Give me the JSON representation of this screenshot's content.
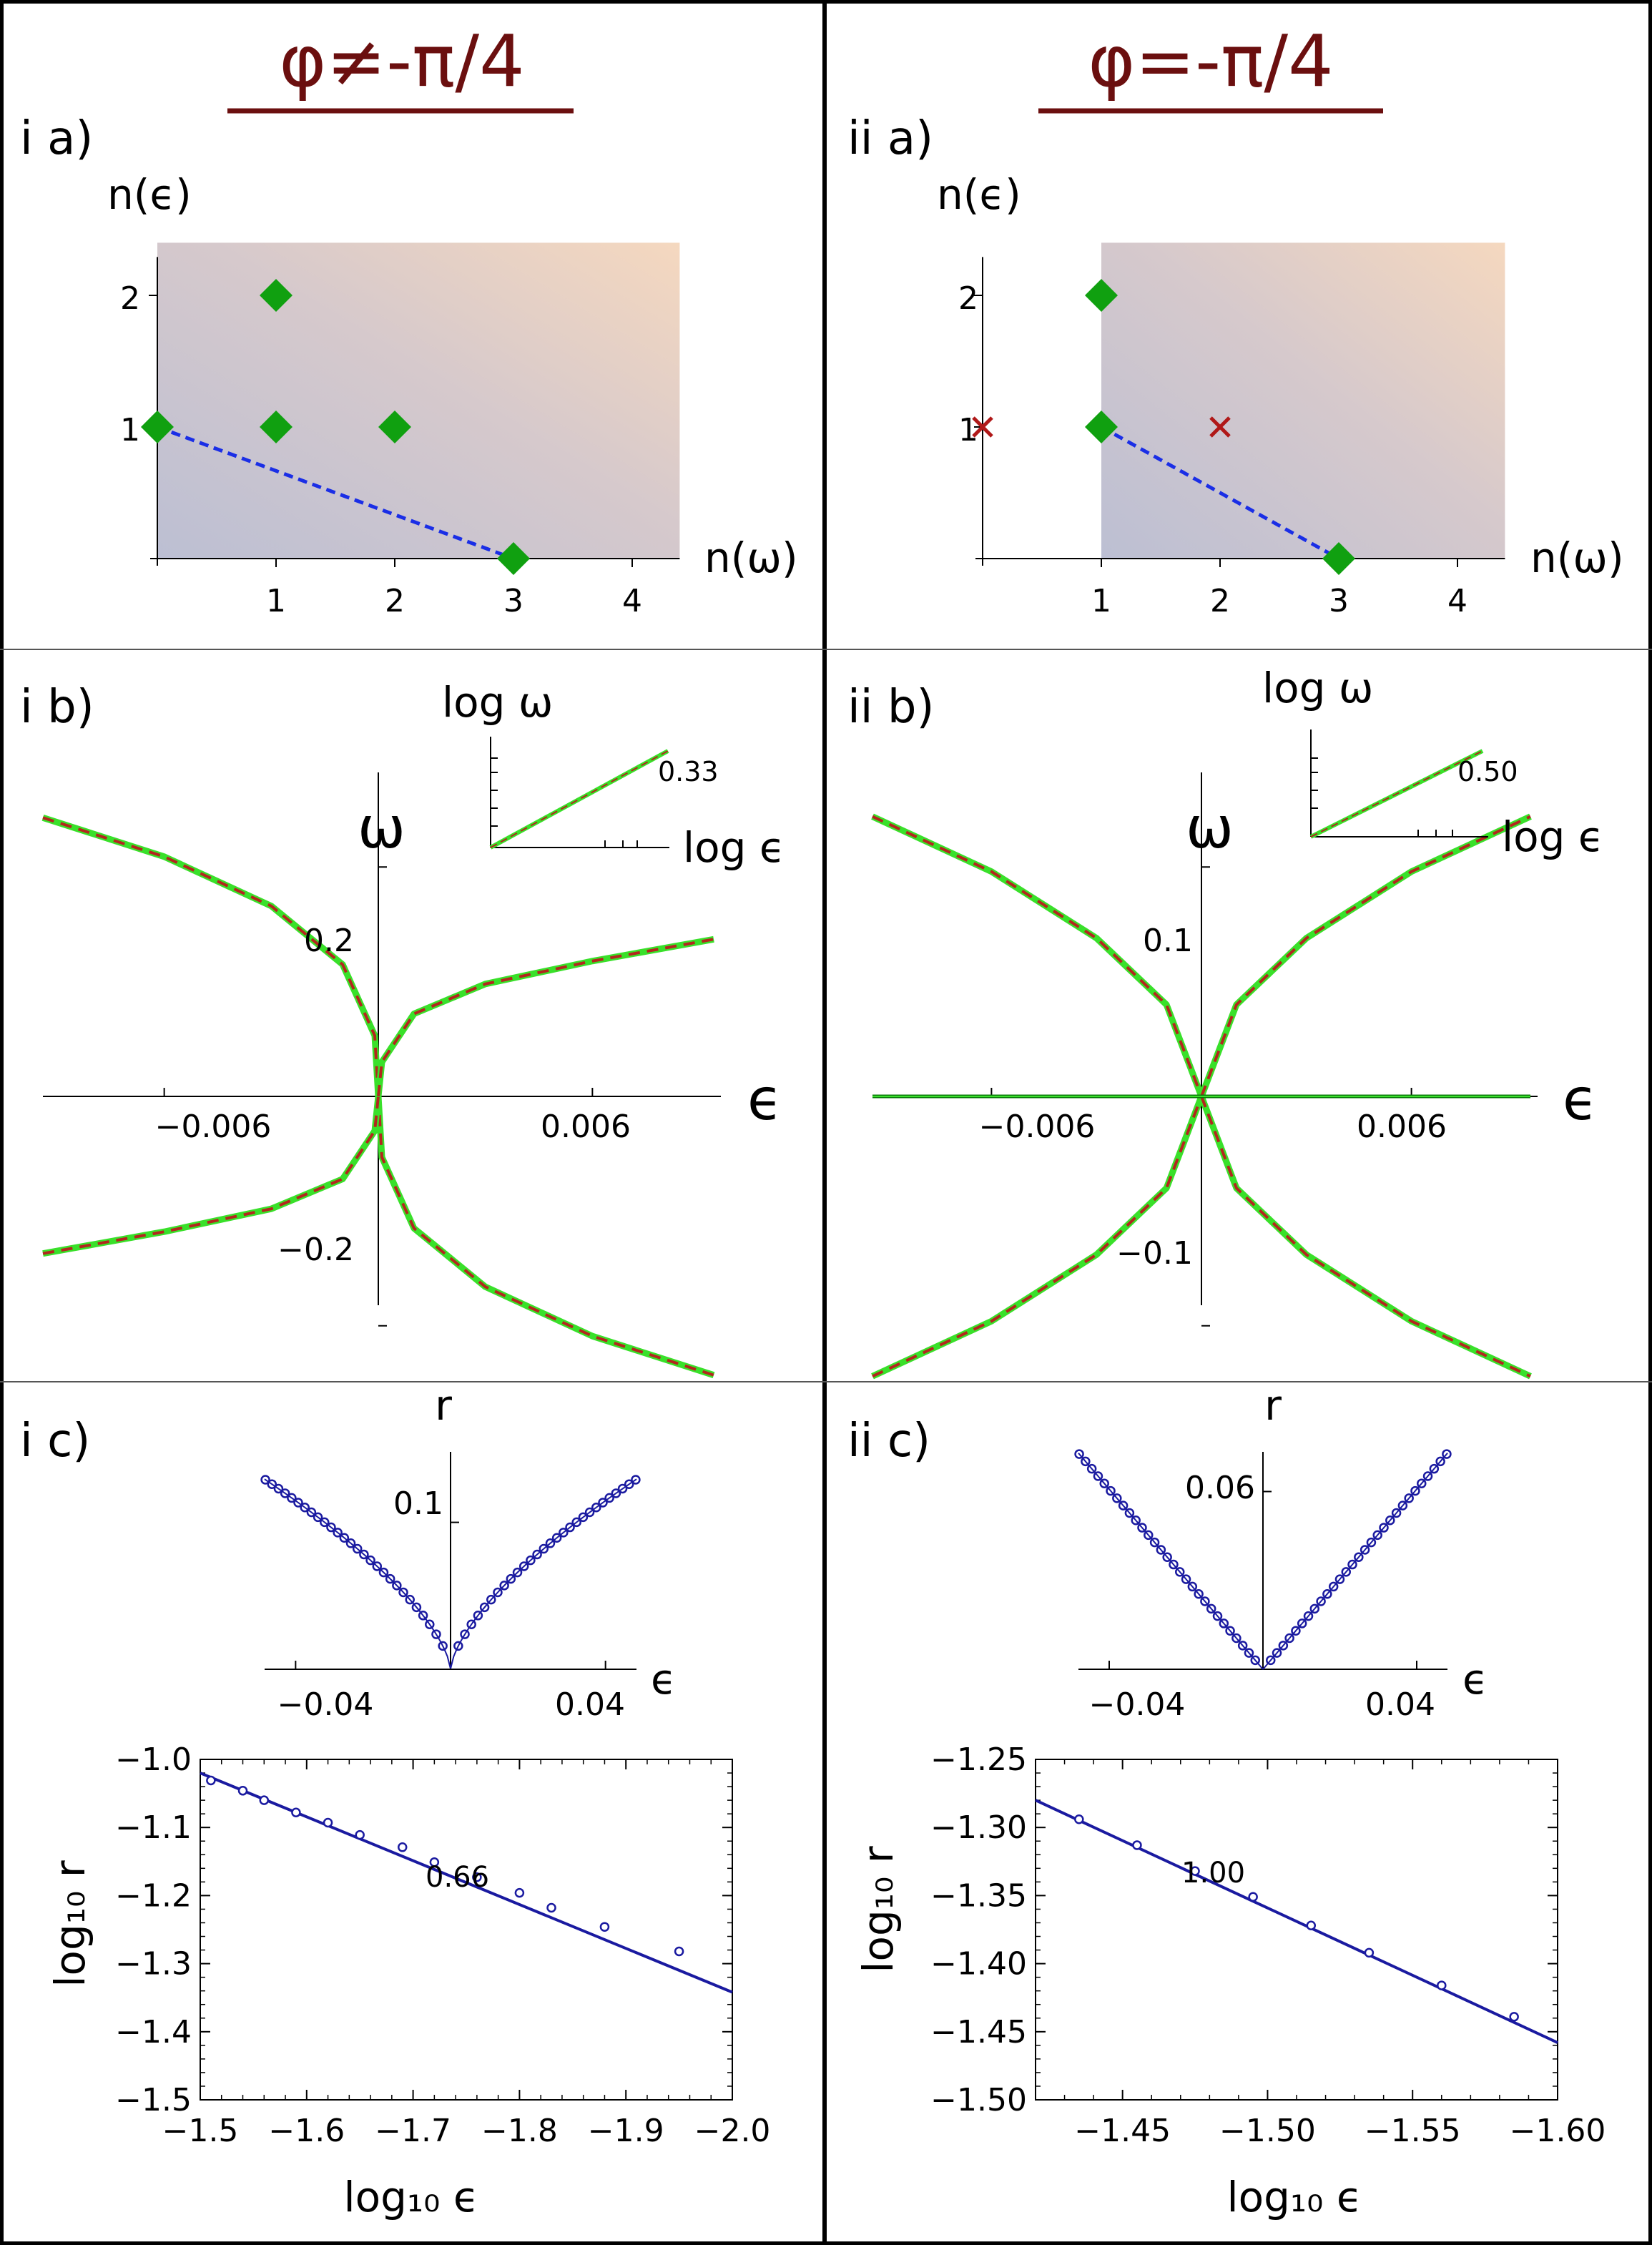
{
  "figure": {
    "columns": [
      {
        "title": "φ≠-π/4"
      },
      {
        "title": "φ=-π/4"
      }
    ],
    "colors": {
      "title": "#6b0f0f",
      "diamond": "#10a010",
      "cross": "#b01818",
      "dashed_newton": "#1a2ee6",
      "green_curve": "#39e02a",
      "red_dashed": "#b3261e",
      "blue": "#1a1aa0"
    }
  },
  "chart_data": [
    {
      "id": "ia",
      "panel_label": "i a)",
      "type": "scatter",
      "title": "",
      "xlabel": "n(ω)",
      "ylabel": "n(ϵ)",
      "xticks": [
        "1",
        "2",
        "3",
        "4"
      ],
      "yticks": [
        "1",
        "2"
      ],
      "xlim": [
        0,
        4.4
      ],
      "ylim": [
        0,
        2.4
      ],
      "shaded_region_start_x": 0,
      "points": [
        {
          "x": 0,
          "y": 1,
          "marker": "diamond"
        },
        {
          "x": 1,
          "y": 1,
          "marker": "diamond"
        },
        {
          "x": 1,
          "y": 2,
          "marker": "diamond"
        },
        {
          "x": 2,
          "y": 1,
          "marker": "diamond"
        },
        {
          "x": 3,
          "y": 0,
          "marker": "diamond"
        }
      ],
      "newton_edge": [
        [
          0,
          1
        ],
        [
          3,
          0
        ]
      ]
    },
    {
      "id": "iia",
      "panel_label": "ii a)",
      "type": "scatter",
      "title": "",
      "xlabel": "n(ω)",
      "ylabel": "n(ϵ)",
      "xticks": [
        "1",
        "2",
        "3",
        "4"
      ],
      "yticks": [
        "1",
        "2"
      ],
      "xlim": [
        0,
        4.4
      ],
      "ylim": [
        0,
        2.4
      ],
      "shaded_region_start_x": 1,
      "points": [
        {
          "x": 0,
          "y": 1,
          "marker": "cross"
        },
        {
          "x": 1,
          "y": 1,
          "marker": "diamond"
        },
        {
          "x": 1,
          "y": 2,
          "marker": "diamond"
        },
        {
          "x": 2,
          "y": 1,
          "marker": "cross"
        },
        {
          "x": 3,
          "y": 0,
          "marker": "diamond"
        }
      ],
      "newton_edge": [
        [
          1,
          1
        ],
        [
          3,
          0
        ]
      ]
    },
    {
      "id": "ib",
      "panel_label": "i b)",
      "type": "line",
      "title": "",
      "xlabel": "ϵ",
      "ylabel": "ω",
      "xticks": [
        "−0.006",
        "0.006"
      ],
      "yticks": [
        "0.2",
        "−0.2"
      ],
      "xlim": [
        -0.0094,
        0.0094
      ],
      "ylim": [
        -0.27,
        0.27
      ],
      "series": [
        {
          "x": [
            -0.0094,
            -0.006,
            -0.003,
            -0.001,
            -0.0001,
            0
          ],
          "y": [
            0.243,
            0.209,
            0.166,
            0.115,
            0.053,
            0
          ]
        },
        {
          "x": [
            0,
            0.0001,
            0.001,
            0.003,
            0.006,
            0.0094
          ],
          "y": [
            0,
            -0.053,
            -0.115,
            -0.166,
            -0.209,
            -0.243
          ]
        },
        {
          "x": [
            0,
            0.0001,
            0.001,
            0.003,
            0.006,
            0.0094
          ],
          "y": [
            0,
            0.03,
            0.072,
            0.098,
            0.118,
            0.137
          ]
        },
        {
          "x": [
            -0.0094,
            -0.006,
            -0.003,
            -0.001,
            -0.0001,
            0
          ],
          "y": [
            -0.137,
            -0.118,
            -0.098,
            -0.072,
            -0.03,
            0
          ]
        }
      ],
      "inset": {
        "xlabel": "log ϵ",
        "ylabel": "log ω",
        "slope_label": "0.33",
        "slope": 0.33
      }
    },
    {
      "id": "iib",
      "panel_label": "ii b)",
      "type": "line",
      "title": "",
      "xlabel": "ϵ",
      "ylabel": "ω",
      "xticks": [
        "−0.006",
        "0.006"
      ],
      "yticks": [
        "0.1",
        "−0.1"
      ],
      "xlim": [
        -0.0094,
        0.0094
      ],
      "ylim": [
        -0.135,
        0.135
      ],
      "series": [
        {
          "x": [
            -0.0094,
            -0.006,
            -0.003,
            -0.001,
            0
          ],
          "y": [
            0.122,
            0.098,
            0.069,
            0.04,
            0
          ]
        },
        {
          "x": [
            0,
            0.001,
            0.003,
            0.006,
            0.0094
          ],
          "y": [
            0,
            0.04,
            0.069,
            0.098,
            0.122
          ]
        },
        {
          "x": [
            -0.0094,
            -0.006,
            -0.003,
            -0.001,
            0
          ],
          "y": [
            -0.122,
            -0.098,
            -0.069,
            -0.04,
            0
          ]
        },
        {
          "x": [
            0,
            0.001,
            0.003,
            0.006,
            0.0094
          ],
          "y": [
            0,
            -0.04,
            -0.069,
            -0.098,
            -0.122
          ]
        },
        {
          "x": [
            -0.0094,
            0.0094
          ],
          "y": [
            0,
            0
          ]
        }
      ],
      "inset": {
        "xlabel": "log ϵ",
        "ylabel": "log ω",
        "slope_label": "0.50",
        "slope": 0.5
      }
    },
    {
      "id": "ic-top",
      "panel_label": "i c)",
      "type": "scatter",
      "title": "",
      "xlabel": "ϵ",
      "ylabel": "r",
      "xticks": [
        "−0.04",
        "0.04"
      ],
      "yticks": [
        "0.1"
      ],
      "xlim": [
        -0.048,
        0.048
      ],
      "ylim": [
        0,
        0.148
      ],
      "fit": {
        "form": "a*|x|^p",
        "a": 0.96,
        "p": 0.66
      },
      "point_count": 56
    },
    {
      "id": "iic-top",
      "panel_label": "ii c)",
      "type": "scatter",
      "title": "",
      "xlabel": "ϵ",
      "ylabel": "r",
      "xticks": [
        "−0.04",
        "0.04"
      ],
      "yticks": [
        "0.06"
      ],
      "xlim": [
        -0.048,
        0.048
      ],
      "ylim": [
        0,
        0.0734
      ],
      "fit": {
        "form": "a*|x|^p",
        "a": 1.52,
        "p": 1.0
      },
      "point_count": 58
    },
    {
      "id": "ic-bottom",
      "type": "scatter",
      "title": "",
      "xlabel": "log₁₀ ϵ",
      "ylabel": "log₁₀ r",
      "xlim": [
        -1.5,
        -2.0
      ],
      "ylim": [
        -1.5,
        -1.0
      ],
      "xticks": [
        -1.5,
        -1.6,
        -1.7,
        -1.8,
        -1.9,
        -2.0
      ],
      "xtick_labels": [
        "−1.5",
        "−1.6",
        "−1.7",
        "−1.8",
        "−1.9",
        "−2.0"
      ],
      "yticks": [
        -1.0,
        -1.1,
        -1.2,
        -1.3,
        -1.4,
        -1.5
      ],
      "ytick_labels": [
        "−1.0",
        "−1.1",
        "−1.2",
        "−1.3",
        "−1.4",
        "−1.5"
      ],
      "slope_label": "0.66",
      "fit_line": {
        "x": [
          -1.5,
          -2.0
        ],
        "y": [
          -1.02,
          -1.342
        ]
      },
      "x": [
        -1.51,
        -1.54,
        -1.56,
        -1.59,
        -1.62,
        -1.65,
        -1.69,
        -1.72,
        -1.76,
        -1.8,
        -1.83,
        -1.88,
        -1.95
      ],
      "y": [
        -1.031,
        -1.046,
        -1.06,
        -1.078,
        -1.093,
        -1.111,
        -1.129,
        -1.151,
        -1.173,
        -1.196,
        -1.218,
        -1.246,
        -1.282
      ]
    },
    {
      "id": "iic-bottom",
      "type": "scatter",
      "title": "",
      "xlabel": "log₁₀ ϵ",
      "ylabel": "log₁₀ r",
      "xlim": [
        -1.42,
        -1.6
      ],
      "ylim": [
        -1.5,
        -1.25
      ],
      "xticks": [
        -1.45,
        -1.5,
        -1.55,
        -1.6
      ],
      "xtick_labels": [
        "−1.45",
        "−1.50",
        "−1.55",
        "−1.60"
      ],
      "yticks": [
        -1.25,
        -1.3,
        -1.35,
        -1.4,
        -1.45,
        -1.5
      ],
      "ytick_labels": [
        "−1.25",
        "−1.30",
        "−1.35",
        "−1.40",
        "−1.45",
        "−1.50"
      ],
      "slope_label": "1.00",
      "fit_line": {
        "x": [
          -1.42,
          -1.6
        ],
        "y": [
          -1.28,
          -1.458
        ]
      },
      "x": [
        -1.435,
        -1.455,
        -1.475,
        -1.495,
        -1.515,
        -1.535,
        -1.56,
        -1.585
      ],
      "y": [
        -1.294,
        -1.313,
        -1.332,
        -1.351,
        -1.372,
        -1.392,
        -1.416,
        -1.439
      ]
    }
  ]
}
